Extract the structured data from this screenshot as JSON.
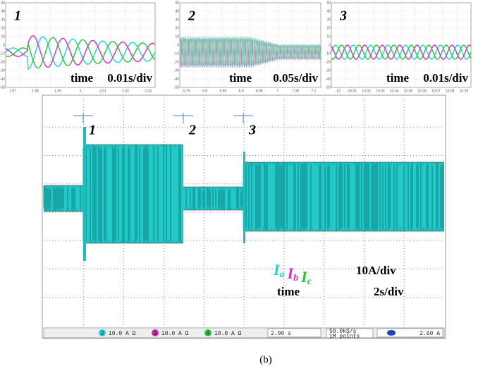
{
  "insets": [
    {
      "number": "1",
      "time": "time",
      "scale": "0.01s/div",
      "yticks": [
        "50",
        "40",
        "30",
        "20",
        "10",
        "0",
        "-10",
        "-20",
        "-30",
        "-40",
        "-50"
      ],
      "xticks": [
        "1.97",
        "1.98",
        "1.99",
        "2",
        "2.01",
        "2.02",
        "2.03"
      ]
    },
    {
      "number": "2",
      "time": "time",
      "scale": "0.05s/div",
      "yticks": [
        "50",
        "40",
        "30",
        "20",
        "10",
        "0",
        "-10",
        "-20",
        "-30",
        "-40",
        "-50"
      ],
      "xticks": [
        "6.75",
        "6.8",
        "6.85",
        "6.9",
        "6.95",
        "7",
        "7.05",
        "7.1"
      ]
    },
    {
      "number": "3",
      "time": "time",
      "scale": "0.01s/div",
      "yticks": [
        "50",
        "40",
        "30",
        "20",
        "10",
        "0",
        "-10",
        "-20",
        "-30",
        "-40",
        "-50"
      ],
      "xticks": [
        "10",
        "10.01",
        "10.02",
        "10.03",
        "10.04",
        "10.05",
        "10.06",
        "10.07",
        "10.08",
        "10.09"
      ]
    }
  ],
  "main": {
    "markers": [
      "1",
      "2",
      "3"
    ],
    "legend": {
      "a": {
        "symbol": "I",
        "sub": "a"
      },
      "b": {
        "symbol": "I",
        "sub": "b"
      },
      "c": {
        "symbol": "I",
        "sub": "c"
      },
      "current_scale": "10A/div",
      "time": "time",
      "time_scale": "2s/div"
    },
    "status": {
      "channels": [
        {
          "id": "2",
          "setting": "10.0 A Ω"
        },
        {
          "id": "3",
          "setting": "10.0 A Ω"
        },
        {
          "id": "4",
          "setting": "10.0 A Ω"
        }
      ],
      "timebase": "2.00 s",
      "rate": "50.0kS/s",
      "points": "1M points",
      "trigger": "2.60 A"
    }
  },
  "caption": "(b)"
}
